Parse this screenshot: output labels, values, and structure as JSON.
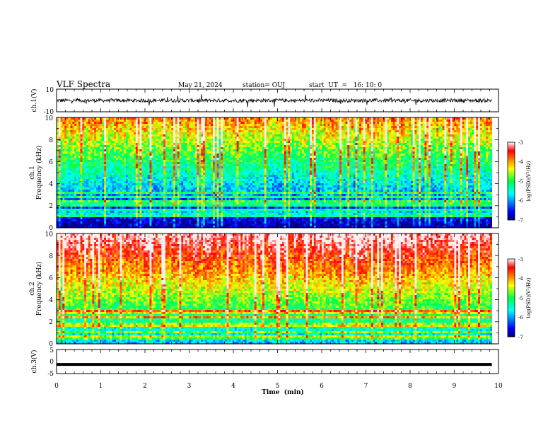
{
  "header": {
    "title": "VLF Spectra",
    "date": "May 21, 2024",
    "station": "station= OUJ",
    "start": "start  UT  =   16: 10: 0"
  },
  "chart_data": [
    {
      "type": "line",
      "ylabel": "ch.1(V)",
      "ylim": [
        -10,
        10
      ],
      "yticks": [
        "10",
        "-10"
      ],
      "xlim": [
        0,
        10
      ],
      "baseline": 0,
      "noise_amplitude": 2
    },
    {
      "type": "heatmap",
      "ylabel_line1": "ch.1",
      "ylabel_line2": "Frequency (kHz)",
      "yticks": [
        "0",
        "2",
        "4",
        "6",
        "8",
        "10"
      ],
      "ylim": [
        0,
        10
      ],
      "xlim": [
        0,
        9.85
      ],
      "colorbar": {
        "ticks": [
          "-3",
          "-4",
          "-5",
          "-6",
          "-7"
        ],
        "label": "log(PSD)(V²/Hz)",
        "range": [
          -7,
          -3
        ]
      }
    },
    {
      "type": "heatmap",
      "ylabel_line1": "ch.2",
      "ylabel_line2": "Frequency (kHz)",
      "yticks": [
        "0",
        "2",
        "4",
        "6",
        "8",
        "10"
      ],
      "ylim": [
        0,
        10
      ],
      "xlim": [
        0,
        9.85
      ],
      "colorbar": {
        "ticks": [
          "-3",
          "-4",
          "-5",
          "-6",
          "-7"
        ],
        "label": "log(PSD)(V²/Hz)",
        "range": [
          -7,
          -3
        ]
      }
    },
    {
      "type": "line",
      "ylabel": "ch.3(V)",
      "ylim": [
        -5,
        5
      ],
      "yticks": [
        "5",
        "0",
        "-5"
      ],
      "xlim": [
        0,
        10
      ],
      "baseline": -1.2
    }
  ],
  "xaxis": {
    "label": "Time  (min)",
    "ticks": [
      "0",
      "1",
      "2",
      "3",
      "4",
      "5",
      "6",
      "7",
      "8",
      "9",
      "10"
    ]
  },
  "colors": {
    "axis": "#000000",
    "trace": "#000000"
  }
}
